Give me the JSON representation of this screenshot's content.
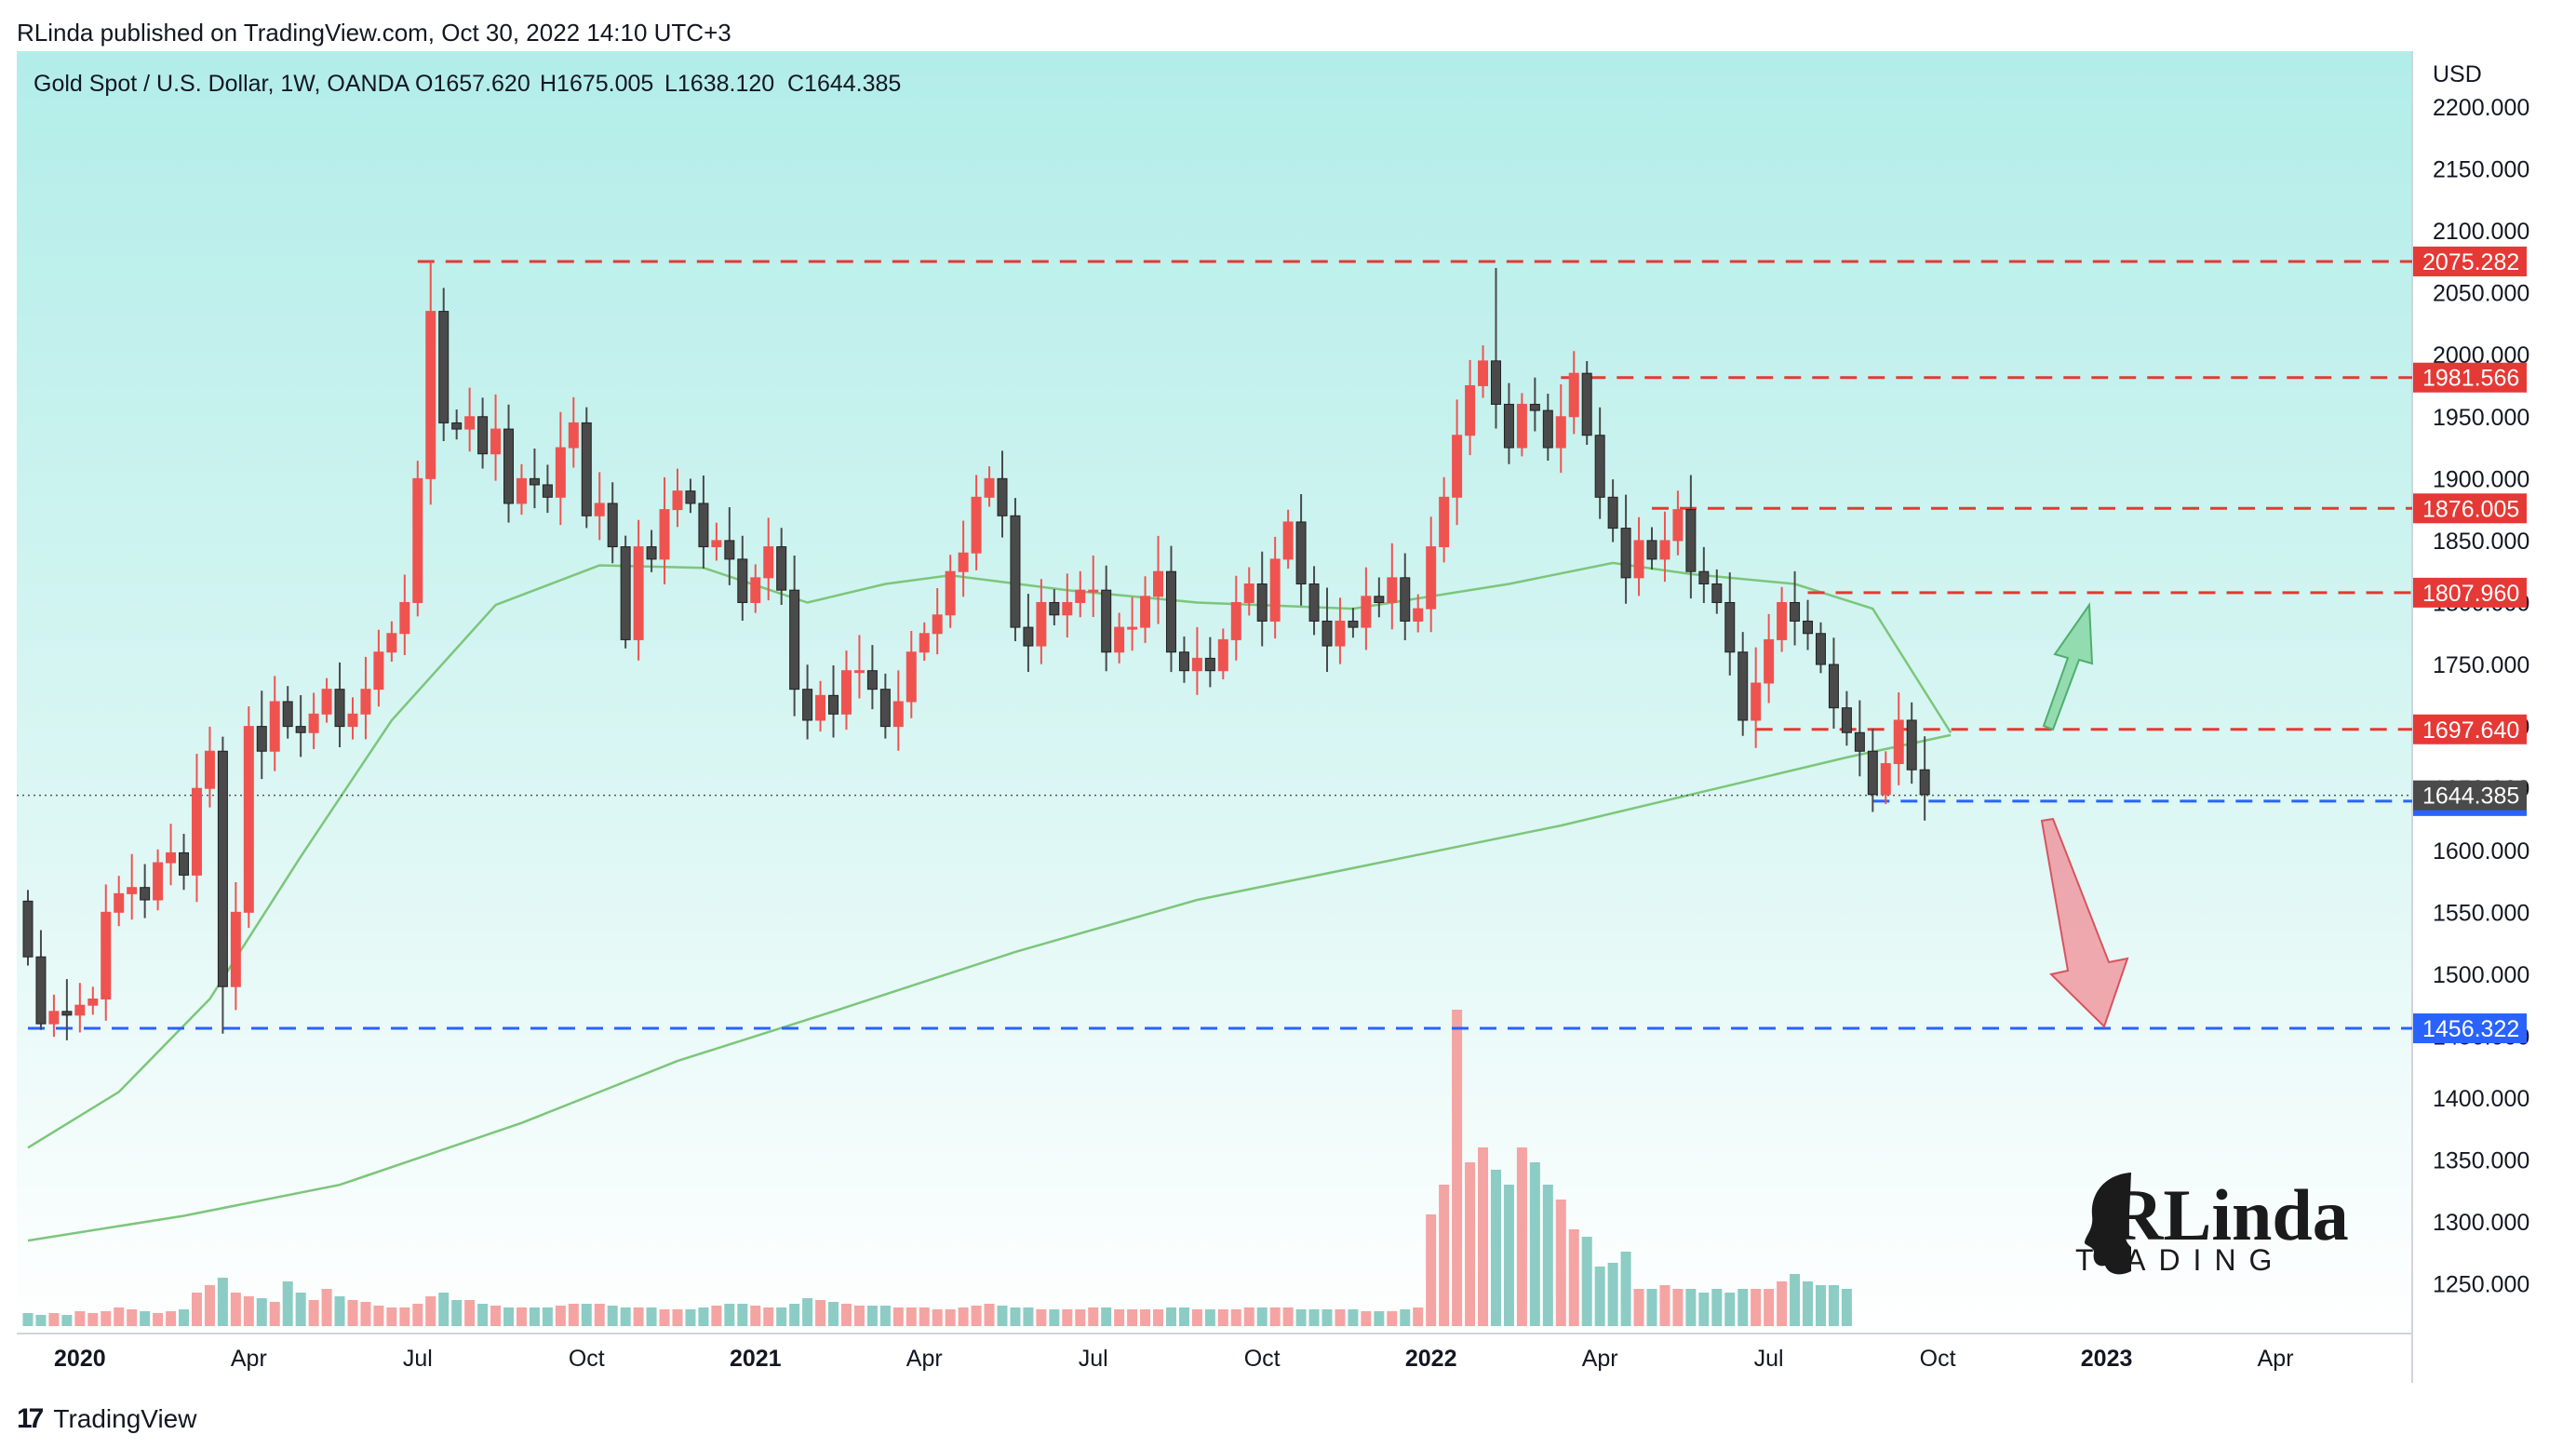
{
  "header": {
    "published": "RLinda published on TradingView.com, Oct 30, 2022 14:10 UTC+3"
  },
  "symbol": {
    "name": "Gold Spot / U.S. Dollar, 1W, OANDA",
    "open": "O1657.620",
    "high": "H1675.005",
    "low": "L1638.120",
    "close": "C1644.385"
  },
  "footer": {
    "brand": "TradingView",
    "logo_icon": "tradingview-logo-icon"
  },
  "watermark": {
    "text": "RLinda",
    "sub": "T  ADING"
  },
  "colors": {
    "up": "#ef5350",
    "down": "#4a4a4a",
    "ma": "#7cc67a",
    "resistance": "#e53935",
    "support": "#2962ff",
    "vol_up": "#f4a4a2",
    "vol_down": "#8cccc4",
    "bg_top": "#b2ede9",
    "bg_bottom": "#ffffff"
  },
  "chart_data": {
    "type": "candlestick",
    "title": "Gold Spot / U.S. Dollar, 1W, OANDA",
    "ylabel": "USD",
    "ylim": [
      1210,
      2245
    ],
    "yticks": [
      "2200.000",
      "2150.000",
      "2100.000",
      "2050.000",
      "2000.000",
      "1950.000",
      "1900.000",
      "1850.000",
      "1800.000",
      "1750.000",
      "1700.000",
      "1650.000",
      "1600.000",
      "1550.000",
      "1500.000",
      "1450.000",
      "1400.000",
      "1350.000",
      "1300.000",
      "1250.000"
    ],
    "xticks": [
      {
        "label": "2020",
        "bold": true,
        "t": 4
      },
      {
        "label": "Apr",
        "bold": false,
        "t": 17
      },
      {
        "label": "Jul",
        "bold": false,
        "t": 30
      },
      {
        "label": "Oct",
        "bold": false,
        "t": 43
      },
      {
        "label": "2021",
        "bold": true,
        "t": 56
      },
      {
        "label": "Apr",
        "bold": false,
        "t": 69
      },
      {
        "label": "Jul",
        "bold": false,
        "t": 82
      },
      {
        "label": "Oct",
        "bold": false,
        "t": 95
      },
      {
        "label": "2022",
        "bold": true,
        "t": 108
      },
      {
        "label": "Apr",
        "bold": false,
        "t": 121
      },
      {
        "label": "Jul",
        "bold": false,
        "t": 134
      },
      {
        "label": "Oct",
        "bold": false,
        "t": 147
      },
      {
        "label": "2023",
        "bold": true,
        "t": 160
      },
      {
        "label": "Apr",
        "bold": false,
        "t": 173
      }
    ],
    "closes": [
      1514,
      1460,
      1470,
      1467,
      1475,
      1480,
      1550,
      1565,
      1570,
      1560,
      1590,
      1598,
      1580,
      1650,
      1680,
      1490,
      1550,
      1700,
      1680,
      1720,
      1700,
      1695,
      1710,
      1730,
      1700,
      1710,
      1730,
      1760,
      1775,
      1800,
      1900,
      2035,
      1945,
      1940,
      1950,
      1920,
      1940,
      1880,
      1900,
      1895,
      1885,
      1925,
      1945,
      1870,
      1880,
      1845,
      1770,
      1845,
      1835,
      1875,
      1890,
      1880,
      1845,
      1850,
      1835,
      1800,
      1820,
      1845,
      1810,
      1730,
      1705,
      1725,
      1710,
      1745,
      1745,
      1730,
      1700,
      1720,
      1760,
      1775,
      1790,
      1825,
      1840,
      1885,
      1900,
      1870,
      1780,
      1765,
      1800,
      1790,
      1800,
      1810,
      1810,
      1760,
      1780,
      1780,
      1805,
      1825,
      1760,
      1745,
      1755,
      1745,
      1770,
      1800,
      1815,
      1785,
      1835,
      1865,
      1815,
      1785,
      1765,
      1785,
      1780,
      1805,
      1800,
      1820,
      1785,
      1795,
      1845,
      1885,
      1935,
      1975,
      1995,
      1960,
      1925,
      1960,
      1955,
      1925,
      1950,
      1985,
      1935,
      1885,
      1860,
      1820,
      1850,
      1835,
      1850,
      1875,
      1825,
      1815,
      1800,
      1760,
      1705,
      1735,
      1770,
      1800,
      1785,
      1775,
      1750,
      1715,
      1695,
      1680,
      1645,
      1670,
      1705,
      1665,
      1645
    ],
    "ma_short": {
      "name": "",
      "t": [
        0,
        7,
        14,
        21,
        28,
        36,
        44,
        52,
        60,
        66,
        71,
        80,
        90,
        102,
        114,
        122,
        128,
        136,
        142,
        148
      ],
      "v": [
        1360,
        1405,
        1480,
        1595,
        1705,
        1798,
        1830,
        1828,
        1800,
        1815,
        1822,
        1810,
        1800,
        1795,
        1815,
        1832,
        1823,
        1815,
        1795,
        1695
      ]
    },
    "ma_long": {
      "name": "",
      "t": [
        0,
        12,
        24,
        38,
        50,
        62,
        76,
        90,
        104,
        118,
        130,
        140,
        148
      ],
      "v": [
        1285,
        1305,
        1330,
        1380,
        1430,
        1470,
        1518,
        1560,
        1590,
        1620,
        1650,
        1675,
        1693
      ]
    },
    "volume": [
      0.035,
      0.03,
      0.035,
      0.03,
      0.04,
      0.035,
      0.04,
      0.05,
      0.045,
      0.04,
      0.035,
      0.04,
      0.045,
      0.09,
      0.11,
      0.13,
      0.09,
      0.08,
      0.075,
      0.065,
      0.12,
      0.09,
      0.07,
      0.1,
      0.08,
      0.07,
      0.065,
      0.055,
      0.05,
      0.05,
      0.06,
      0.08,
      0.09,
      0.07,
      0.07,
      0.06,
      0.055,
      0.05,
      0.05,
      0.05,
      0.05,
      0.055,
      0.06,
      0.06,
      0.06,
      0.055,
      0.05,
      0.05,
      0.05,
      0.045,
      0.045,
      0.045,
      0.05,
      0.055,
      0.06,
      0.06,
      0.055,
      0.05,
      0.05,
      0.06,
      0.075,
      0.07,
      0.065,
      0.06,
      0.055,
      0.055,
      0.055,
      0.05,
      0.05,
      0.05,
      0.045,
      0.045,
      0.05,
      0.055,
      0.06,
      0.055,
      0.05,
      0.05,
      0.045,
      0.045,
      0.045,
      0.045,
      0.05,
      0.05,
      0.045,
      0.045,
      0.045,
      0.045,
      0.05,
      0.05,
      0.045,
      0.045,
      0.045,
      0.045,
      0.05,
      0.05,
      0.05,
      0.05,
      0.045,
      0.045,
      0.045,
      0.045,
      0.045,
      0.04,
      0.04,
      0.04,
      0.045,
      0.05,
      0.3,
      0.38,
      0.85,
      0.44,
      0.48,
      0.42,
      0.38,
      0.48,
      0.44,
      0.38,
      0.34,
      0.26,
      0.24,
      0.16,
      0.17,
      0.2,
      0.1,
      0.1,
      0.11,
      0.1,
      0.1,
      0.09,
      0.1,
      0.09,
      0.1,
      0.1,
      0.1,
      0.12,
      0.14,
      0.12,
      0.11,
      0.11,
      0.1
    ],
    "levels": [
      {
        "value": 2075.282,
        "label": "2075.282",
        "kind": "resistance",
        "t0": 30
      },
      {
        "value": 1981.566,
        "label": "1981.566",
        "kind": "resistance",
        "t0": 118
      },
      {
        "value": 1876.005,
        "label": "1876.005",
        "kind": "resistance",
        "t0": 125
      },
      {
        "value": 1807.96,
        "label": "1807.960",
        "kind": "resistance",
        "t0": 137
      },
      {
        "value": 1697.64,
        "label": "1697.640",
        "kind": "resistance",
        "t0": 133
      },
      {
        "value": 1639.745,
        "label": "1639.745",
        "kind": "support",
        "t0": 142
      },
      {
        "value": 1456.322,
        "label": "1456.322",
        "kind": "support",
        "t0": 0
      }
    ],
    "last_price": {
      "value": 1644.385,
      "label": "1644.385"
    }
  }
}
